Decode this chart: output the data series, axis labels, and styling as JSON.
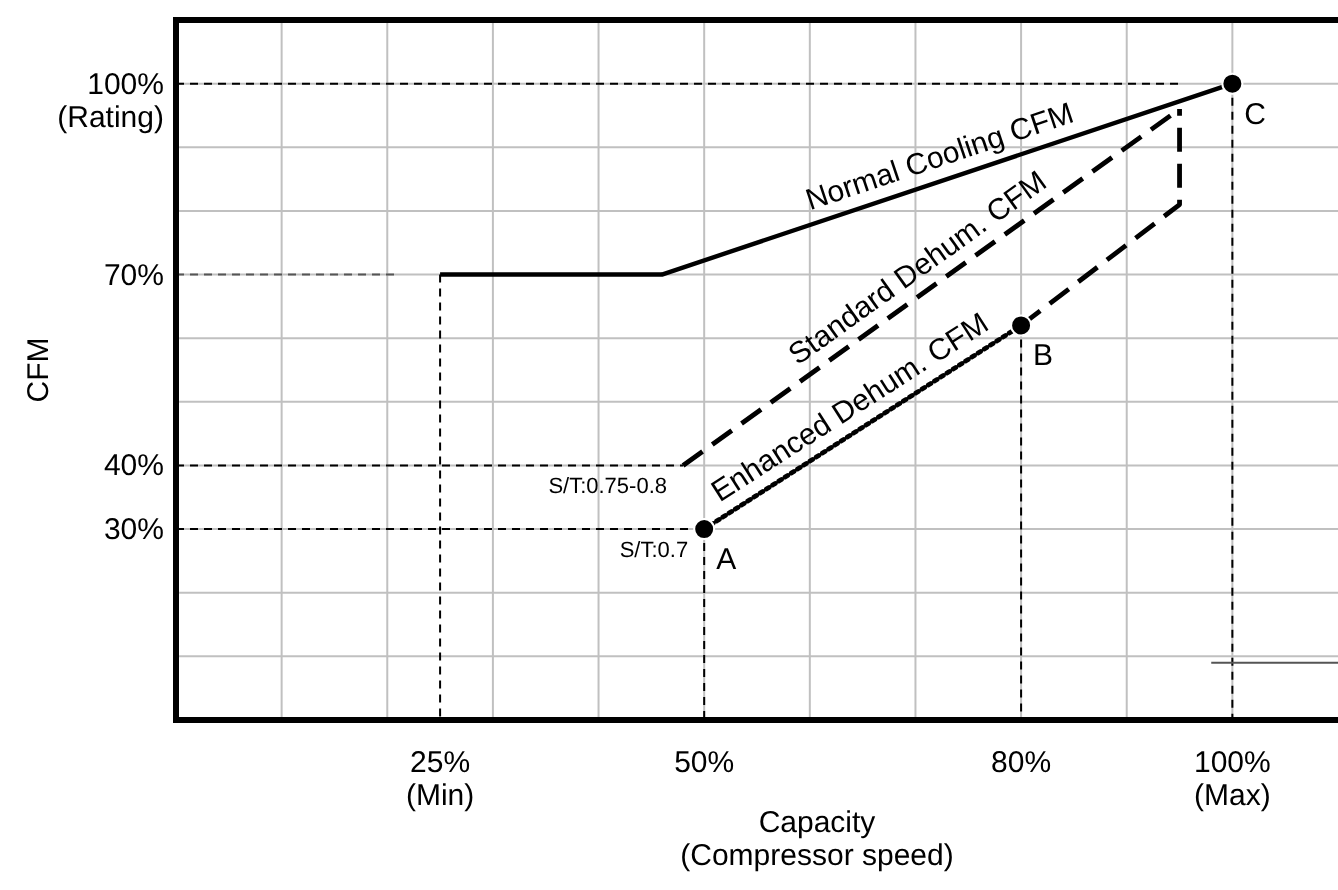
{
  "chart_data": {
    "type": "line",
    "xlabel": "Capacity\n(Compressor speed)",
    "ylabel": "CFM",
    "xlim": [
      0,
      110
    ],
    "ylim": [
      0,
      110
    ],
    "xticks": [
      {
        "value": 25,
        "label": "25%\n(Min)"
      },
      {
        "value": 50,
        "label": "50%"
      },
      {
        "value": 80,
        "label": "80%"
      },
      {
        "value": 100,
        "label": "100%\n(Max)"
      }
    ],
    "yticks": [
      {
        "value": 30,
        "label": "30%"
      },
      {
        "value": 40,
        "label": "40%"
      },
      {
        "value": 70,
        "label": "70%"
      },
      {
        "value": 100,
        "label": "100%\n(Rating)"
      }
    ],
    "grid": true,
    "series": [
      {
        "type": "line",
        "color": "#000000",
        "line_style": "dashed",
        "x": [
          0,
          95
        ],
        "values": [
          100,
          100
        ]
      },
      {
        "type": "line",
        "color": "#000000",
        "line_style": "dashed",
        "x": [
          100,
          100
        ],
        "values": [
          100,
          0
        ]
      },
      {
        "type": "line",
        "color": "#555555",
        "line_style": "dashed",
        "x": [
          0,
          21
        ],
        "values": [
          70,
          70
        ]
      },
      {
        "type": "line",
        "color": "#000000",
        "line_style": "dashed",
        "x": [
          25,
          25
        ],
        "values": [
          70,
          0
        ]
      },
      {
        "type": "line",
        "color": "#000000",
        "line_style": "dashed",
        "x": [
          0,
          48
        ],
        "values": [
          40,
          40
        ]
      },
      {
        "type": "line",
        "color": "#000000",
        "line_style": "dashed",
        "x": [
          0,
          50
        ],
        "values": [
          30,
          30
        ]
      },
      {
        "type": "line",
        "color": "#000000",
        "line_style": "dashed",
        "x": [
          50,
          50
        ],
        "values": [
          30,
          0
        ]
      },
      {
        "type": "line",
        "color": "#000000",
        "line_style": "dashed",
        "x": [
          80,
          80
        ],
        "values": [
          62,
          0
        ]
      },
      {
        "type": "line",
        "color": "#555555",
        "line_style": "solid",
        "x": [
          98,
          110
        ],
        "values": [
          9,
          9
        ]
      },
      {
        "name": "Normal Cooling CFM",
        "color": "#000000",
        "line_style": "solid",
        "x": [
          25,
          46,
          100
        ],
        "values": [
          70,
          70,
          100
        ]
      },
      {
        "name": "Standard Dehum. CFM",
        "color": "#000000",
        "line_style": "dashed",
        "x": [
          48,
          95
        ],
        "values": [
          40,
          96
        ]
      },
      {
        "name": "Enhanced Dehum. CFM",
        "color": "#000000",
        "line_style": "dotted",
        "x": [
          50,
          80
        ],
        "values": [
          30,
          62
        ]
      },
      {
        "type": "line",
        "color": "#000000",
        "line_style": "dashed",
        "x": [
          80,
          95,
          95
        ],
        "values": [
          62,
          81,
          96
        ]
      },
      {
        "type": "scatter",
        "color": "#000000",
        "marker": "circle",
        "x": [
          50,
          80,
          100
        ],
        "values": [
          30,
          62,
          100
        ]
      }
    ],
    "annotations": [
      {
        "text": "A",
        "x": 50,
        "y": 30
      },
      {
        "text": "B",
        "x": 80,
        "y": 62
      },
      {
        "text": "C",
        "x": 100,
        "y": 100
      },
      {
        "text": "S/T:0.75-0.8",
        "x": 48,
        "y": 40
      },
      {
        "text": "S/T:0.7",
        "x": 50,
        "y": 30
      }
    ]
  }
}
